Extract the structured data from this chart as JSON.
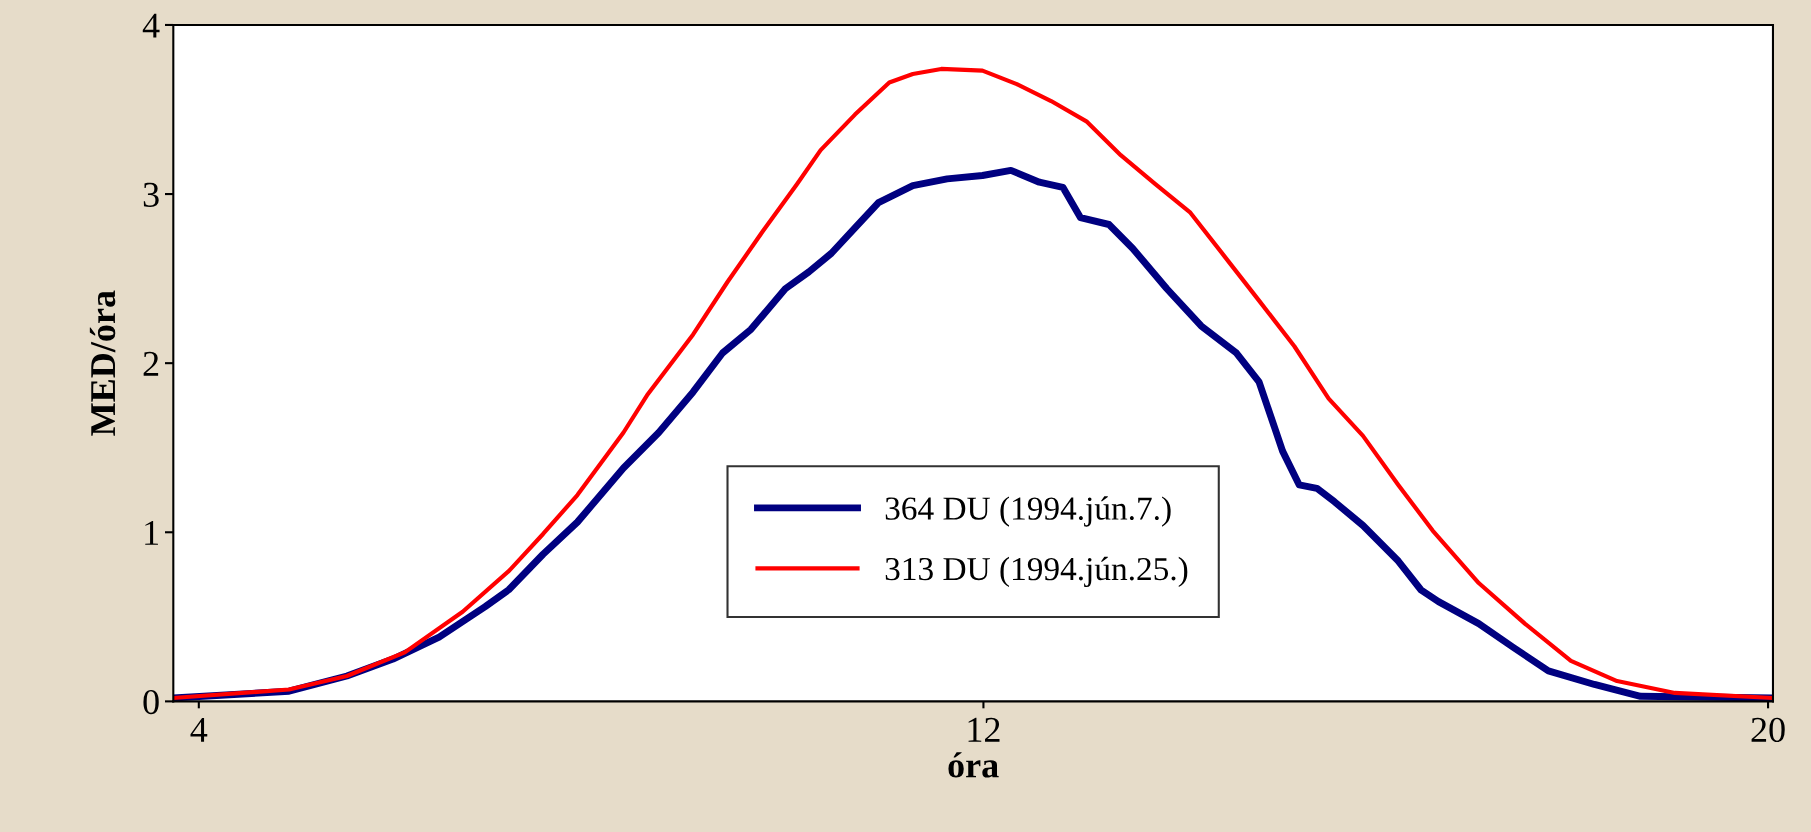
{
  "chart_data": {
    "type": "line",
    "xlabel": "óra",
    "ylabel": "MED/óra",
    "xlim": [
      3.74,
      20.05
    ],
    "xticks": [
      4,
      12,
      20
    ],
    "ylim": [
      0,
      4
    ],
    "yticks": [
      0,
      1,
      2,
      3,
      4
    ],
    "grid": false,
    "legend": "bottom",
    "marker": "none",
    "line_style": "solid",
    "series": [
      {
        "name": "364 DU (1994.jún.7.)",
        "color": "#000080",
        "x": [
          3.74,
          4.92,
          5.51,
          5.98,
          6.45,
          6.92,
          7.16,
          7.51,
          7.86,
          8.33,
          8.69,
          9.04,
          9.34,
          9.63,
          9.98,
          10.22,
          10.45,
          10.69,
          10.93,
          11.28,
          11.63,
          11.99,
          12.28,
          12.57,
          12.81,
          12.99,
          13.28,
          13.52,
          13.87,
          14.22,
          14.58,
          14.81,
          15.05,
          15.22,
          15.4,
          15.58,
          15.87,
          16.23,
          16.46,
          16.64,
          17.05,
          17.4,
          17.76,
          18.23,
          18.7,
          20.05
        ],
        "values": [
          0.02,
          0.06,
          0.15,
          0.25,
          0.38,
          0.56,
          0.66,
          0.87,
          1.06,
          1.38,
          1.59,
          1.83,
          2.06,
          2.2,
          2.44,
          2.54,
          2.65,
          2.8,
          2.95,
          3.05,
          3.09,
          3.11,
          3.14,
          3.07,
          3.04,
          2.86,
          2.82,
          2.68,
          2.44,
          2.22,
          2.06,
          1.89,
          1.48,
          1.28,
          1.26,
          1.18,
          1.04,
          0.83,
          0.66,
          0.59,
          0.46,
          0.32,
          0.18,
          0.1,
          0.03,
          0.02
        ]
      },
      {
        "name": "313 DU (1994.jún.25.)",
        "color": "#ff0000",
        "x": [
          3.74,
          4.92,
          5.51,
          6.1,
          6.69,
          7.16,
          7.51,
          7.86,
          8.33,
          8.57,
          9.04,
          9.39,
          9.75,
          10.1,
          10.34,
          10.69,
          11.04,
          11.28,
          11.57,
          11.99,
          12.34,
          12.69,
          13.05,
          13.4,
          13.75,
          14.11,
          14.46,
          14.81,
          15.17,
          15.52,
          15.87,
          16.23,
          16.58,
          17.05,
          17.52,
          17.99,
          18.46,
          19.05,
          20.05
        ],
        "values": [
          0.02,
          0.07,
          0.15,
          0.29,
          0.53,
          0.77,
          0.99,
          1.22,
          1.59,
          1.81,
          2.17,
          2.48,
          2.78,
          3.06,
          3.26,
          3.47,
          3.66,
          3.71,
          3.74,
          3.73,
          3.65,
          3.55,
          3.43,
          3.23,
          3.06,
          2.89,
          2.63,
          2.37,
          2.1,
          1.79,
          1.57,
          1.28,
          1.01,
          0.7,
          0.46,
          0.24,
          0.12,
          0.05,
          0.02
        ]
      }
    ]
  }
}
